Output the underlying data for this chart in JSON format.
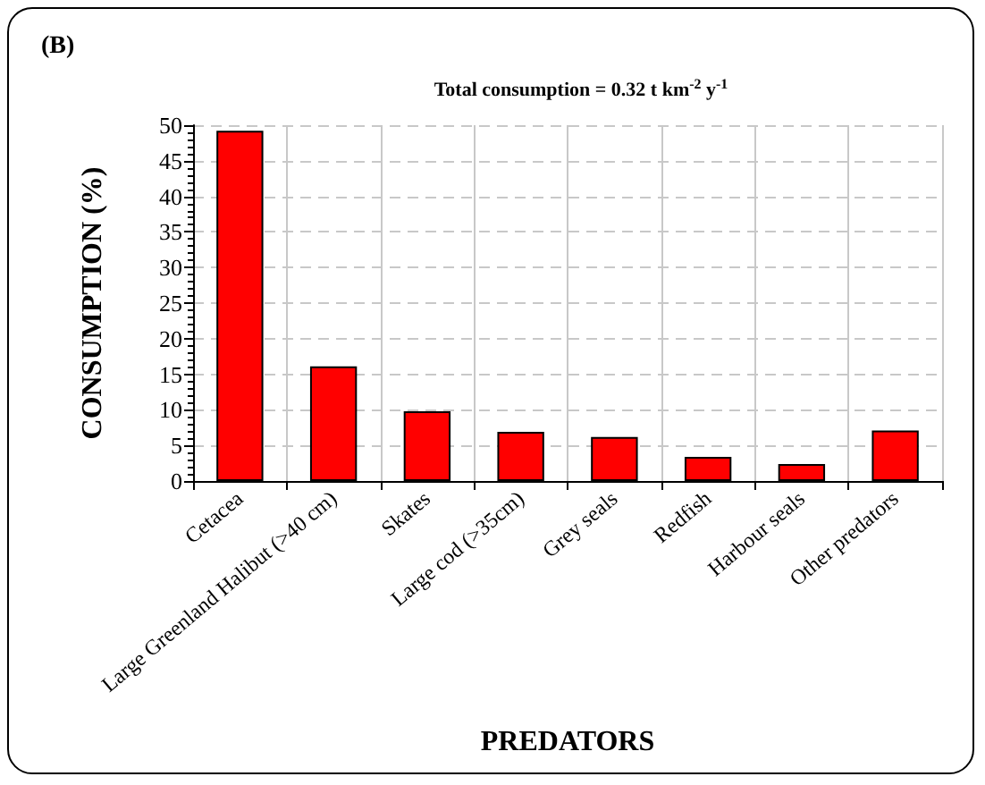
{
  "chart_data": {
    "type": "bar",
    "title": "(B)",
    "subtitle": "Total consumption = 0.32 t km$^{-2}$ y$^{-1}$",
    "xlabel": "PREDATORS",
    "ylabel": "CONSUMPTION (%)",
    "categories": [
      "Cetacea",
      "Large Greenland Halibut (>40 cm)",
      "Skates",
      "Large cod (>35cm)",
      "Grey seals",
      "Redfish",
      "Harbour seals",
      "Other predators"
    ],
    "values": [
      49.2,
      16.1,
      9.8,
      6.9,
      6.2,
      3.4,
      2.4,
      7.1
    ],
    "color": "#ff0000",
    "ylim": [
      0,
      50
    ],
    "yticks": [
      0,
      5,
      10,
      15,
      20,
      25,
      30,
      35,
      40,
      45,
      50
    ],
    "grid": true
  }
}
